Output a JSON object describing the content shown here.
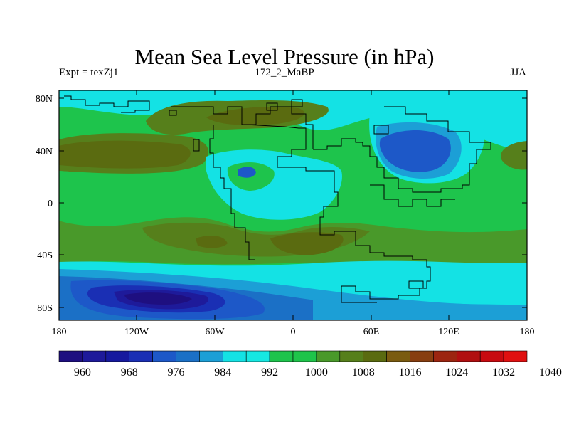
{
  "title": "Mean Sea Level Pressure (in hPa)",
  "subtitle_left": "Expt = texZj1",
  "subtitle_center": "172_2_MaBP",
  "subtitle_right": "JJA",
  "x_tick_labels": [
    "180",
    "120W",
    "60W",
    "0",
    "60E",
    "120E",
    "180"
  ],
  "y_tick_labels": [
    "80N",
    "40N",
    "0",
    "40S",
    "80S"
  ],
  "colorbar": {
    "colors": [
      "#1e0f80",
      "#1e1a9a",
      "#16199e",
      "#1a2fb4",
      "#1d58c8",
      "#1b70c6",
      "#1c9fd6",
      "#14e2e4",
      "#16e8e2",
      "#1ec44c",
      "#1ec44a",
      "#49992a",
      "#567f1b",
      "#5a6b10",
      "#7a5b10",
      "#873e10",
      "#9c2510",
      "#b00f10",
      "#c80a10",
      "#e01010"
    ],
    "labels": [
      "960",
      "968",
      "976",
      "984",
      "992",
      "1000",
      "1008",
      "1016",
      "1024",
      "1032",
      "1040"
    ]
  },
  "chart_data": {
    "type": "heatmap",
    "variable": "Mean Sea Level Pressure",
    "units": "hPa",
    "experiment": "texZj1",
    "age": "172_2_MaBP",
    "season": "JJA",
    "xlim": [
      -180,
      180
    ],
    "ylim": [
      -90,
      90
    ],
    "levels": [
      960,
      964,
      968,
      972,
      976,
      980,
      984,
      988,
      992,
      996,
      1000,
      1004,
      1008,
      1012,
      1016,
      1020,
      1024,
      1028,
      1032,
      1036,
      1040
    ]
  }
}
